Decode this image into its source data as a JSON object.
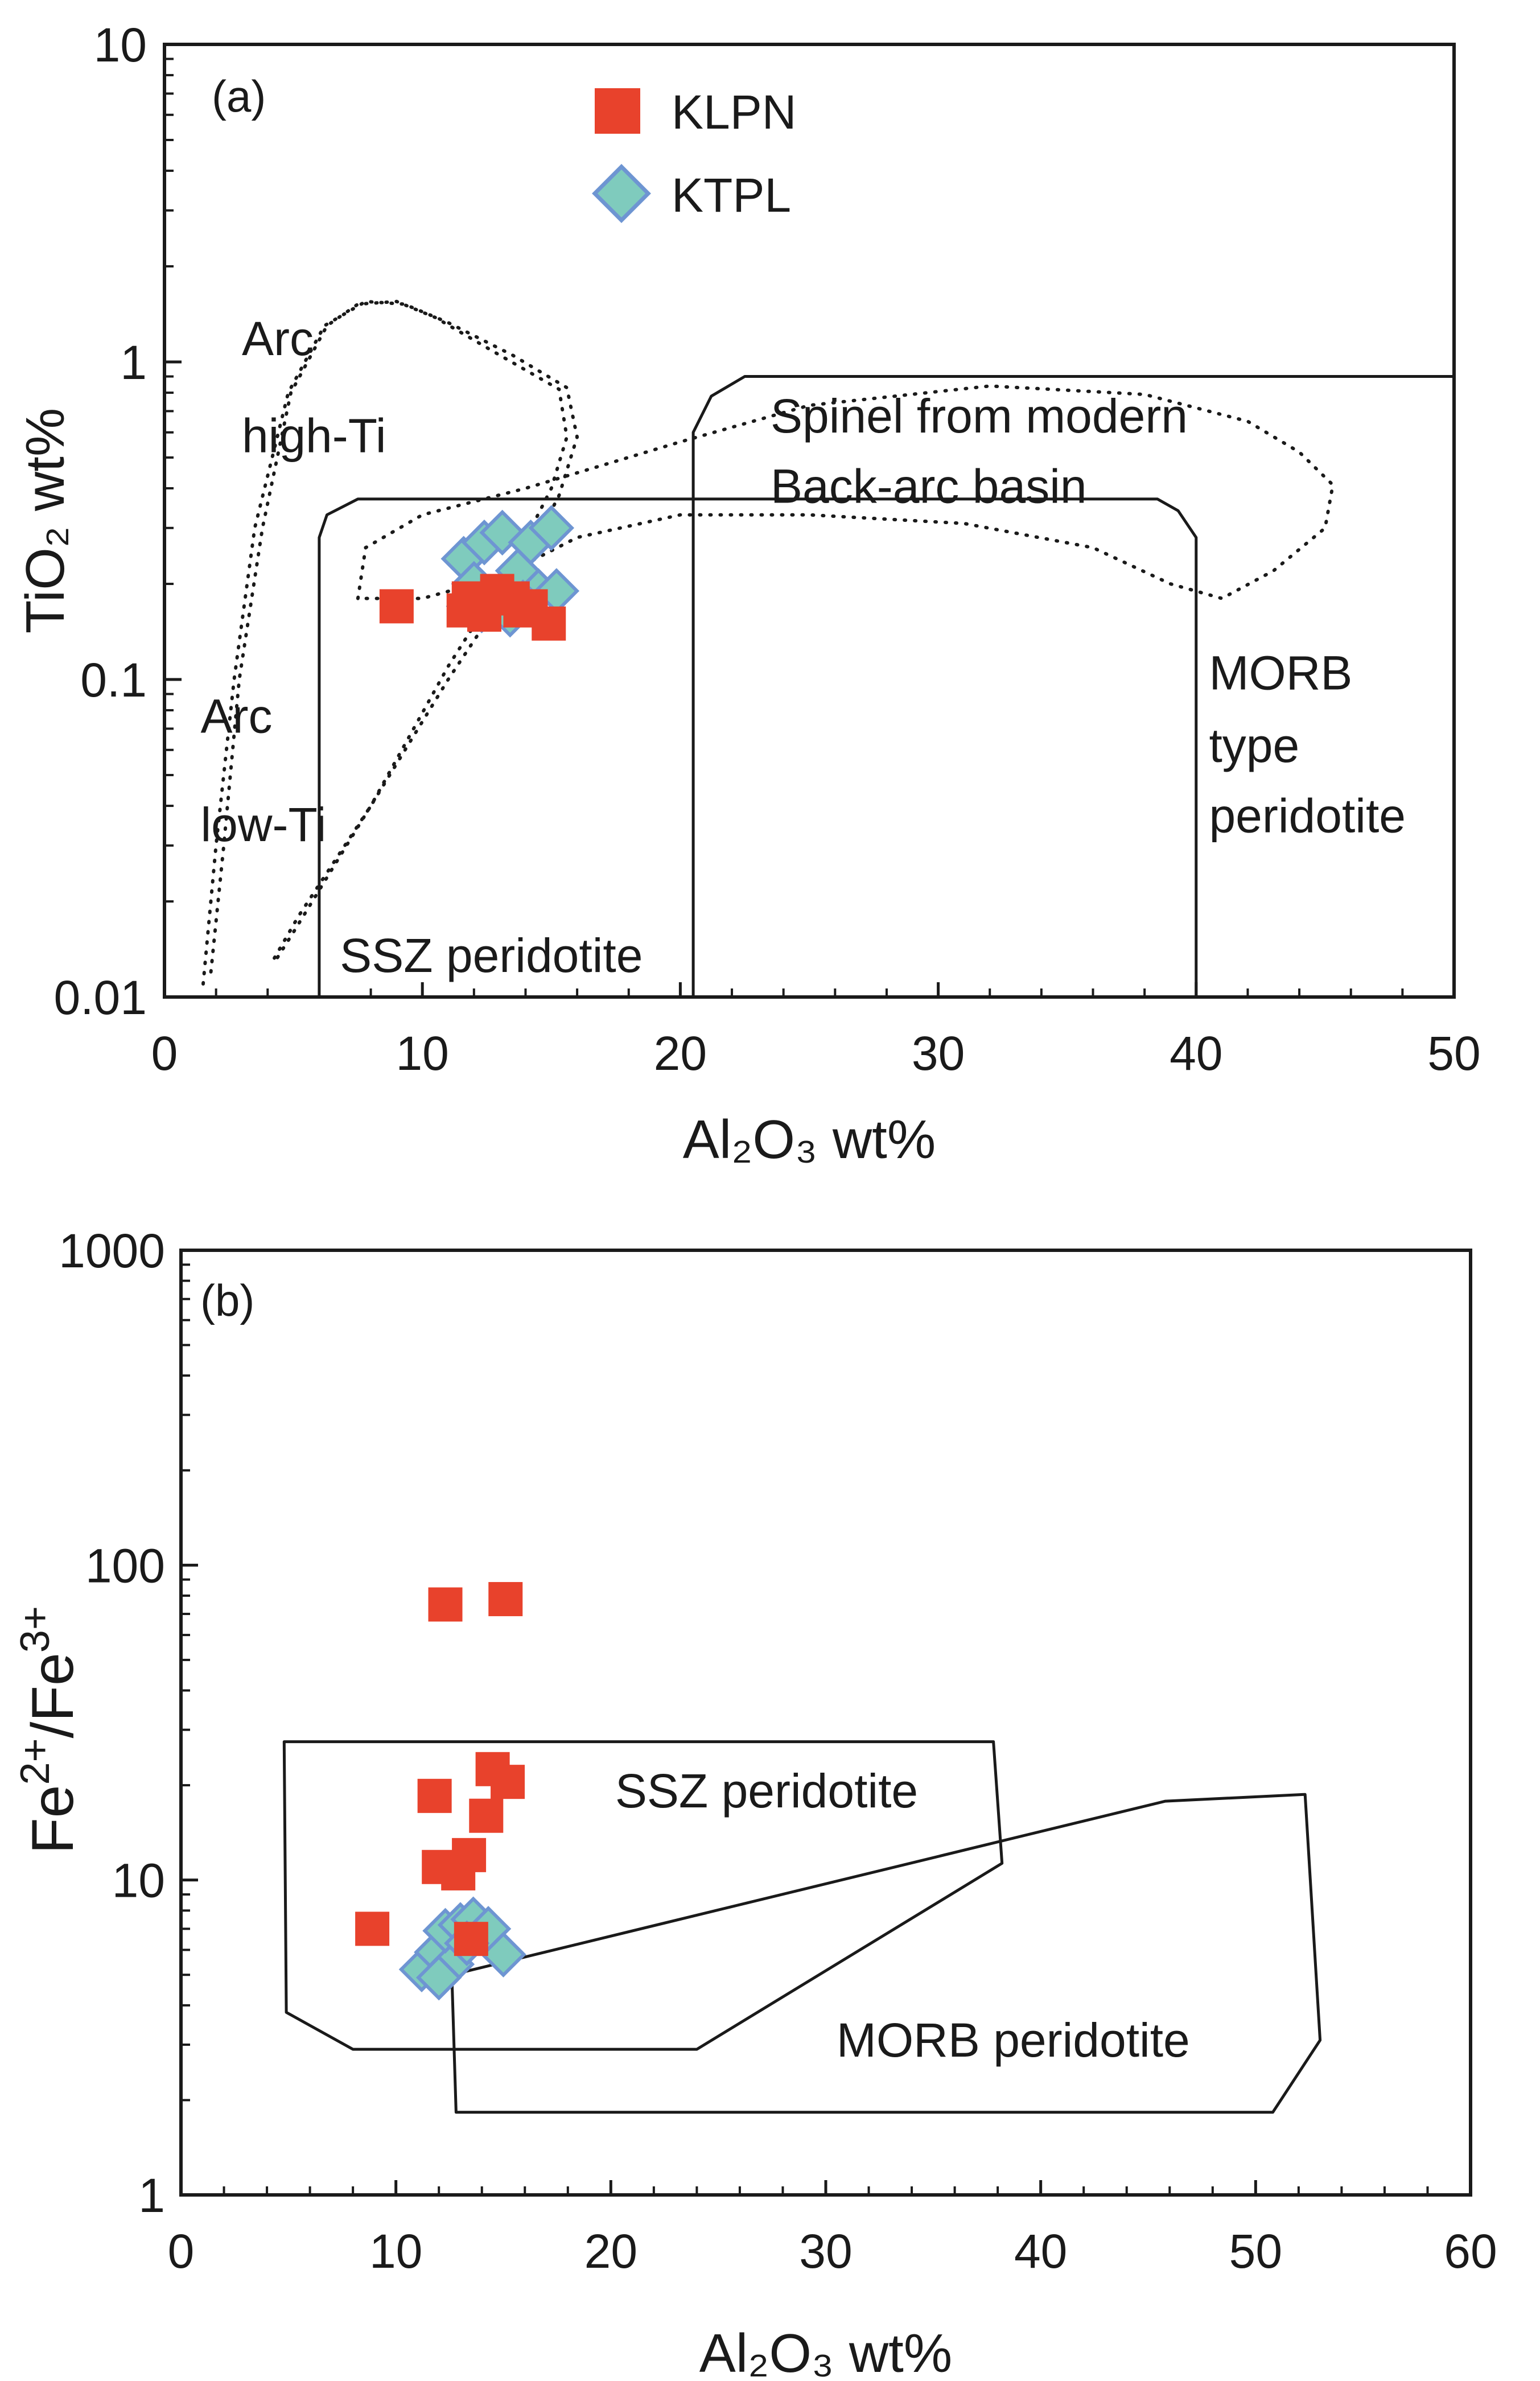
{
  "colors": {
    "klpn": "#e8422c",
    "ktpl_fill": "#7fcbbd",
    "ktpl_stroke": "#6e95d2",
    "axis": "#1a1a1a",
    "text": "#1a1a1a"
  },
  "chart_data": [
    {
      "id": "a",
      "type": "scatter",
      "panel_label": "(a)",
      "xlabel": "Al₂O₃ wt%",
      "ylabel": "TiO₂ wt%",
      "xlim": [
        0,
        50
      ],
      "ylim": [
        0.01,
        10
      ],
      "yscale": "log",
      "xticks": [
        0,
        10,
        20,
        30,
        40,
        50
      ],
      "xtick_labels": [
        "0",
        "10",
        "20",
        "30",
        "40",
        "50"
      ],
      "yticks": [
        0.01,
        0.1,
        1,
        10
      ],
      "ytick_labels": [
        "0.01",
        "0.1",
        "1",
        "10"
      ],
      "legend": {
        "position": "top-center",
        "entries": [
          {
            "label": "KLPN",
            "marker": "square"
          },
          {
            "label": "KTPL",
            "marker": "diamond"
          }
        ]
      },
      "series": [
        {
          "name": "KTPL",
          "marker": "diamond",
          "points": [
            [
              11.6,
              0.24
            ],
            [
              12.4,
              0.27
            ],
            [
              13.1,
              0.29
            ],
            [
              14.2,
              0.27
            ],
            [
              15.0,
              0.3
            ],
            [
              13.7,
              0.22
            ],
            [
              12.0,
              0.2
            ],
            [
              12.9,
              0.18
            ],
            [
              11.8,
              0.17
            ],
            [
              13.4,
              0.16
            ],
            [
              14.5,
              0.19
            ],
            [
              15.2,
              0.19
            ],
            [
              12.3,
              0.165
            ],
            [
              13.9,
              0.175
            ]
          ]
        },
        {
          "name": "KLPN",
          "marker": "square",
          "points": [
            [
              9.0,
              0.17
            ],
            [
              11.8,
              0.18
            ],
            [
              12.4,
              0.16
            ],
            [
              12.9,
              0.19
            ],
            [
              13.5,
              0.18
            ],
            [
              14.2,
              0.17
            ],
            [
              14.9,
              0.15
            ],
            [
              12.2,
              0.175
            ],
            [
              13.8,
              0.165
            ],
            [
              11.6,
              0.165
            ]
          ]
        }
      ],
      "regions": [
        {
          "name": "SSZ peridotite",
          "style": "solid",
          "points": [
            [
              6,
              0.01
            ],
            [
              6,
              0.28
            ],
            [
              6.3,
              0.33
            ],
            [
              7.5,
              0.37
            ],
            [
              38.5,
              0.37
            ],
            [
              39.3,
              0.34
            ],
            [
              40,
              0.28
            ],
            [
              40,
              0.01
            ]
          ]
        },
        {
          "name": "MORB type peridotite",
          "style": "solid",
          "points": [
            [
              20.5,
              0.01
            ],
            [
              20.5,
              0.6
            ],
            [
              21.2,
              0.78
            ],
            [
              22.5,
              0.9
            ],
            [
              50,
              0.9
            ],
            [
              50,
              0.01
            ]
          ]
        },
        {
          "name": "Spinel from modern Back-arc basin",
          "style": "dotted",
          "points": [
            [
              7.5,
              0.18
            ],
            [
              7.8,
              0.26
            ],
            [
              10,
              0.33
            ],
            [
              14,
              0.4
            ],
            [
              20,
              0.56
            ],
            [
              25,
              0.73
            ],
            [
              32,
              0.84
            ],
            [
              38,
              0.79
            ],
            [
              42,
              0.65
            ],
            [
              44,
              0.52
            ],
            [
              45.3,
              0.41
            ],
            [
              45,
              0.3
            ],
            [
              43,
              0.22
            ],
            [
              41,
              0.18
            ],
            [
              39,
              0.2
            ],
            [
              36,
              0.26
            ],
            [
              31,
              0.31
            ],
            [
              25,
              0.33
            ],
            [
              20,
              0.33
            ],
            [
              16,
              0.28
            ],
            [
              13,
              0.21
            ],
            [
              10,
              0.18
            ]
          ]
        },
        {
          "name": "Arc high-Ti",
          "style": "dotted",
          "points": [
            [
              1.8,
              0.012
            ],
            [
              2.3,
              0.03
            ],
            [
              2.9,
              0.1
            ],
            [
              3.8,
              0.3
            ],
            [
              4.9,
              0.8
            ],
            [
              6.3,
              1.3
            ],
            [
              7.5,
              1.52
            ],
            [
              9,
              1.55
            ],
            [
              10.5,
              1.38
            ],
            [
              13,
              1.05
            ],
            [
              15.3,
              0.82
            ],
            [
              15.6,
              0.58
            ],
            [
              15,
              0.4
            ],
            [
              13.5,
              0.23
            ],
            [
              11,
              0.11
            ],
            [
              8,
              0.04
            ],
            [
              5,
              0.016
            ],
            [
              4.3,
              0.013
            ]
          ]
        },
        {
          "name": "Arc low-Ti",
          "style": "dotted",
          "points": [
            [
              1.5,
              0.011
            ],
            [
              2,
              0.03
            ],
            [
              2.7,
              0.1
            ],
            [
              3.5,
              0.3
            ],
            [
              4.8,
              0.8
            ],
            [
              6.2,
              1.3
            ],
            [
              7.8,
              1.55
            ],
            [
              9.3,
              1.52
            ],
            [
              11,
              1.33
            ],
            [
              13.5,
              1.05
            ],
            [
              15.6,
              0.83
            ],
            [
              16,
              0.58
            ],
            [
              15.3,
              0.38
            ],
            [
              13.8,
              0.22
            ],
            [
              11,
              0.1
            ],
            [
              8,
              0.04
            ],
            [
              5.2,
              0.018
            ],
            [
              4.2,
              0.013
            ]
          ]
        }
      ],
      "annotations": [
        {
          "text": "Arc",
          "xy": [
            3,
            1.05
          ]
        },
        {
          "text": "high-Ti",
          "xy": [
            3,
            0.52
          ]
        },
        {
          "text": "Arc",
          "xy": [
            1.4,
            0.068
          ]
        },
        {
          "text": "low-Ti",
          "xy": [
            1.4,
            0.031
          ]
        },
        {
          "text": "SSZ peridotite",
          "xy": [
            6.8,
            0.012
          ]
        },
        {
          "text": "Spinel from modern",
          "xy": [
            23.5,
            0.6
          ]
        },
        {
          "text": "Back-arc basin",
          "xy": [
            23.5,
            0.36
          ]
        },
        {
          "text": "MORB",
          "xy": [
            40.5,
            0.093
          ]
        },
        {
          "text": "type",
          "xy": [
            40.5,
            0.055
          ]
        },
        {
          "text": "peridotite",
          "xy": [
            40.5,
            0.033
          ]
        }
      ]
    },
    {
      "id": "b",
      "type": "scatter",
      "panel_label": "(b)",
      "xlabel": "Al₂O₃ wt%",
      "ylabel": "Fe2+/Fe3+",
      "ylabel_parts": [
        "Fe",
        "2+",
        "/Fe",
        "3+"
      ],
      "xlim": [
        0,
        60
      ],
      "ylim": [
        1,
        1000
      ],
      "yscale": "log",
      "xticks": [
        0,
        10,
        20,
        30,
        40,
        50,
        60
      ],
      "xtick_labels": [
        "0",
        "10",
        "20",
        "30",
        "40",
        "50",
        "60"
      ],
      "yticks": [
        1,
        10,
        100,
        1000
      ],
      "ytick_labels": [
        "1",
        "10",
        "100",
        "1000"
      ],
      "series": [
        {
          "name": "KTPL",
          "marker": "diamond",
          "points": [
            [
              11.2,
              5.2
            ],
            [
              11.9,
              5.9
            ],
            [
              12.6,
              5.4
            ],
            [
              12.3,
              6.9
            ],
            [
              13.0,
              7.2
            ],
            [
              13.6,
              7.5
            ],
            [
              14.3,
              7.0
            ],
            [
              15.0,
              5.8
            ],
            [
              12.0,
              4.9
            ],
            [
              13.3,
              6.3
            ]
          ]
        },
        {
          "name": "KLPN",
          "marker": "square",
          "points": [
            [
              12.3,
              75
            ],
            [
              15.1,
              78
            ],
            [
              8.9,
              7.0
            ],
            [
              11.8,
              18.5
            ],
            [
              12.0,
              11.0
            ],
            [
              12.9,
              10.5
            ],
            [
              13.4,
              12.0
            ],
            [
              13.5,
              6.5
            ],
            [
              14.2,
              16.0
            ],
            [
              14.5,
              22.5
            ],
            [
              15.2,
              20.5
            ]
          ]
        }
      ],
      "regions": [
        {
          "name": "SSZ peridotite",
          "style": "solid",
          "points": [
            [
              4.8,
              27.5
            ],
            [
              37.8,
              27.5
            ],
            [
              38.2,
              11.3
            ],
            [
              24.0,
              2.9
            ],
            [
              8.0,
              2.9
            ],
            [
              4.9,
              3.8
            ]
          ]
        },
        {
          "name": "MORB peridotite",
          "style": "solid",
          "points": [
            [
              12.6,
              5.0
            ],
            [
              45.8,
              17.8
            ],
            [
              52.3,
              18.7
            ],
            [
              53.0,
              3.1
            ],
            [
              50.8,
              1.83
            ],
            [
              12.8,
              1.83
            ]
          ]
        }
      ],
      "annotations": [
        {
          "text": "SSZ peridotite",
          "xy": [
            20.2,
            17.0
          ]
        },
        {
          "text": "MORB peridotite",
          "xy": [
            30.5,
            2.75
          ]
        }
      ]
    }
  ]
}
